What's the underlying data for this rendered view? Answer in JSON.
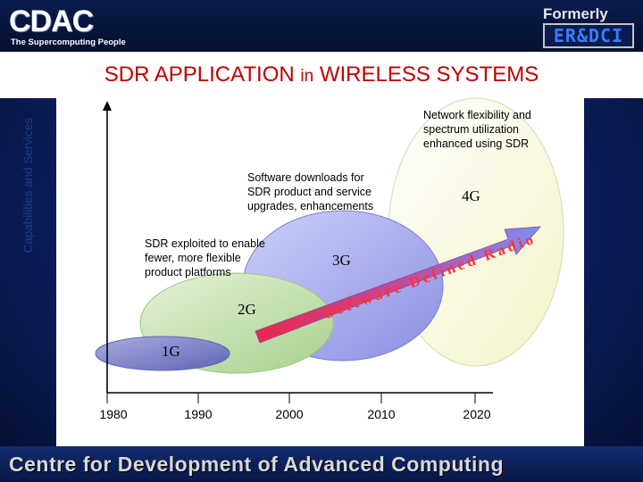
{
  "header": {
    "logo_text": "CDAC",
    "logo_tagline": "The Supercomputing People",
    "formerly_label": "Formerly",
    "former_name": "ER&DCI"
  },
  "slide": {
    "title_main": "SDR APPLICATION",
    "title_in": "in",
    "title_rest": "WIRELESS SYSTEMS"
  },
  "diagram": {
    "y_axis_label": "Capabilities and Services",
    "x_ticks": [
      "1980",
      "1990",
      "2000",
      "2010",
      "2020"
    ],
    "generations": [
      "1G",
      "2G",
      "3G",
      "4G"
    ],
    "arrow_label": "Software Defined Radio",
    "annotations": {
      "network": [
        "Network flexibility and",
        "spectrum utilization",
        "enhanced using SDR"
      ],
      "downloads": [
        "Software downloads for",
        "SDR product and service",
        "upgrades, enhancements"
      ],
      "exploited": [
        "SDR exploited to enable",
        "fewer, more flexible",
        "product platforms"
      ]
    },
    "colors": {
      "1G": "#7a7fc8",
      "2G": "#c2dfae",
      "3G": "#9fa3ea",
      "4G": "#fafad8",
      "arrow_start": "#e8274d",
      "arrow_end": "#7a8ff5",
      "axis": "#000000"
    }
  },
  "footer": {
    "text": "Centre for Development of Advanced Computing"
  }
}
